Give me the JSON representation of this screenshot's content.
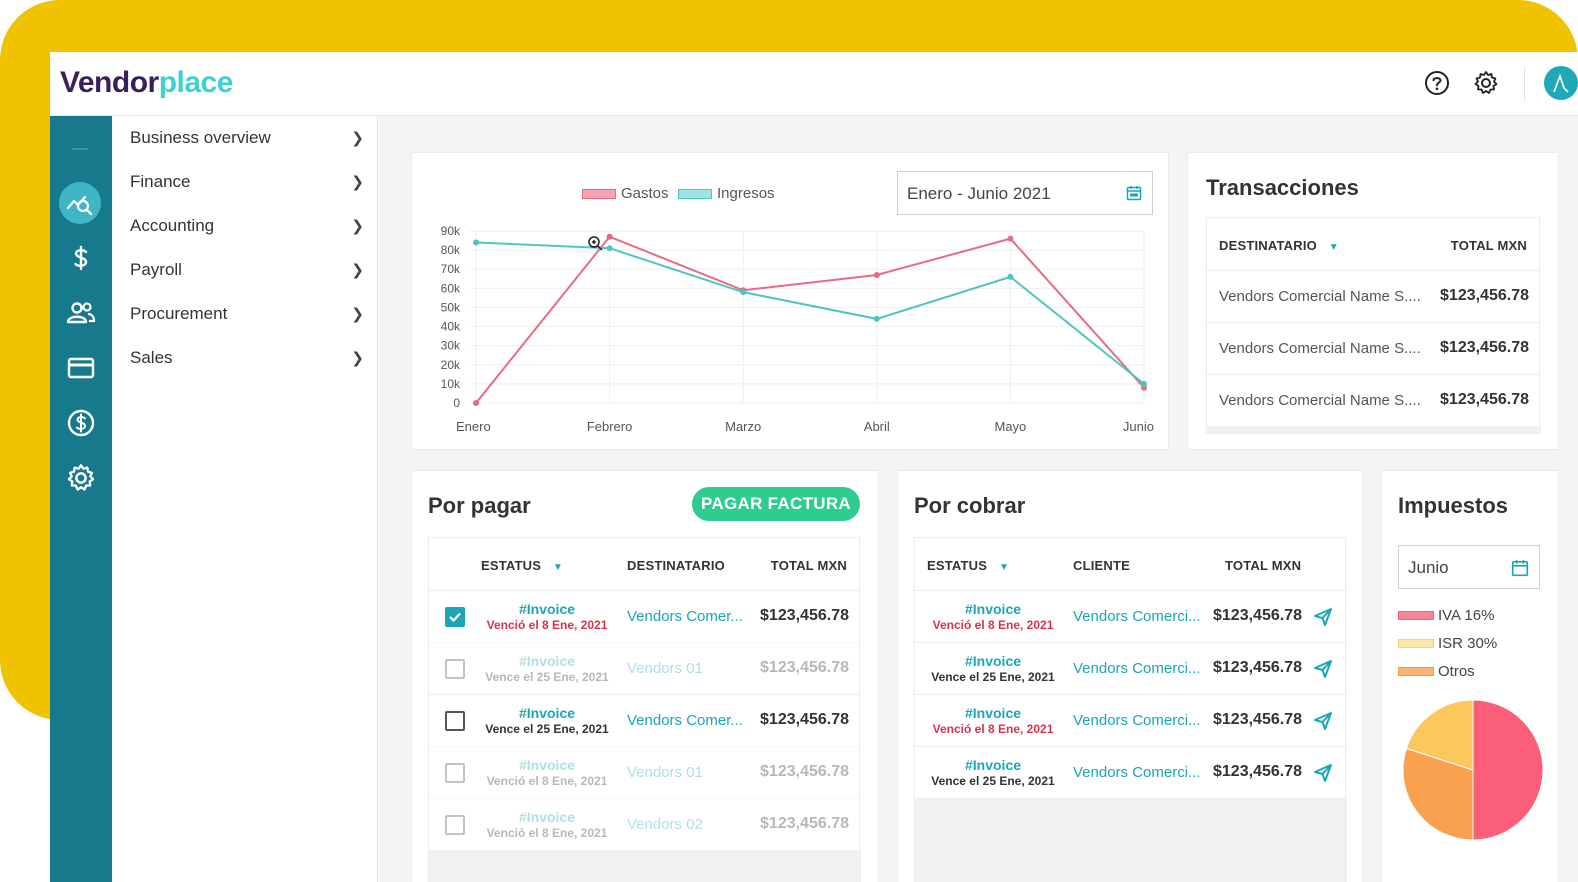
{
  "brand": {
    "part1": "Vendor",
    "part2": "place"
  },
  "header": {
    "help_icon": "help-circle-icon",
    "settings_icon": "gear-icon"
  },
  "sidebar": {
    "icons": [
      "analytics-icon",
      "dollar-icon",
      "users-icon",
      "credit-card-icon",
      "coin-icon",
      "gear-icon"
    ],
    "items": [
      {
        "label": "Business overview"
      },
      {
        "label": "Finance"
      },
      {
        "label": "Accounting"
      },
      {
        "label": "Payroll"
      },
      {
        "label": "Procurement"
      },
      {
        "label": "Sales"
      }
    ]
  },
  "overview": {
    "date_range": "Enero - Junio 2021"
  },
  "chart_data": {
    "type": "line",
    "categories": [
      "Enero",
      "Febrero",
      "Marzo",
      "Abril",
      "Mayo",
      "Junio"
    ],
    "y_ticks": [
      "0",
      "10k",
      "20k",
      "30k",
      "40k",
      "50k",
      "60k",
      "70k",
      "80k",
      "90k"
    ],
    "ylim": [
      0,
      90000
    ],
    "series": [
      {
        "name": "Gastos",
        "color": "#e86a84",
        "values": [
          0,
          87000,
          59000,
          67000,
          86000,
          8000
        ]
      },
      {
        "name": "Ingresos",
        "color": "#4fc4c4",
        "values": [
          84000,
          81000,
          58000,
          44000,
          66000,
          10000
        ]
      }
    ],
    "grid": true,
    "legend": "top"
  },
  "transacciones": {
    "title": "Transacciones",
    "col_dest": "DESTINATARIO",
    "col_total": "TOTAL MXN",
    "rows": [
      {
        "dest": "Vendors Comercial Name S....",
        "total": "$123,456.78"
      },
      {
        "dest": "Vendors Comercial Name S....",
        "total": "$123,456.78"
      },
      {
        "dest": "Vendors Comercial Name S....",
        "total": "$123,456.78"
      }
    ]
  },
  "por_pagar": {
    "title": "Por pagar",
    "button": "PAGAR FACTURA",
    "col_status": "ESTATUS",
    "col_dest": "DESTINATARIO",
    "col_total": "TOTAL MXN",
    "rows": [
      {
        "invoice": "#Invoice",
        "due": "Venció el 8 Ene, 2021",
        "dest": "Vendors Comer...",
        "total": "$123,456.78"
      },
      {
        "invoice": "#Invoice",
        "due": "Vence el 25 Ene, 2021",
        "dest": "Vendors 01",
        "total": "$123,456.78"
      },
      {
        "invoice": "#Invoice",
        "due": "Vence el 25 Ene, 2021",
        "dest": "Vendors Comer...",
        "total": "$123,456.78"
      },
      {
        "invoice": "#Invoice",
        "due": "Venció el 8 Ene, 2021",
        "dest": "Vendors 01",
        "total": "$123,456.78"
      },
      {
        "invoice": "#Invoice",
        "due": "Venció el 8 Ene, 2021",
        "dest": "Vendors 02",
        "total": "$123,456.78"
      }
    ]
  },
  "por_cobrar": {
    "title": "Por cobrar",
    "col_status": "ESTATUS",
    "col_client": "CLIENTE",
    "col_total": "TOTAL MXN",
    "rows": [
      {
        "invoice": "#Invoice",
        "due": "Venció el 8 Ene, 2021",
        "client": "Vendors Comerci...",
        "total": "$123,456.78"
      },
      {
        "invoice": "#Invoice",
        "due": "Vence el 25 Ene, 2021",
        "client": "Vendors Comerci...",
        "total": "$123,456.78"
      },
      {
        "invoice": "#Invoice",
        "due": "Venció el 8 Ene, 2021",
        "client": "Vendors Comerci...",
        "total": "$123,456.78"
      },
      {
        "invoice": "#Invoice",
        "due": "Vence el 25 Ene, 2021",
        "client": "Vendors Comerci...",
        "total": "$123,456.78"
      }
    ]
  },
  "impuestos": {
    "title": "Impuestos",
    "month": "Junio",
    "legend": [
      {
        "label": "IVA 16%",
        "color": "#f7869c"
      },
      {
        "label": "ISR 30%",
        "color": "#f9e6a8"
      },
      {
        "label": "Otros",
        "color": "#f8b673"
      }
    ],
    "pie": [
      {
        "label": "IVA 16%",
        "value": 50,
        "color": "#fb5e79"
      },
      {
        "label": "Otros",
        "value": 30,
        "color": "#f9a14f"
      },
      {
        "label": "ISR 30%",
        "value": 20,
        "color": "#fcc75c"
      }
    ]
  }
}
